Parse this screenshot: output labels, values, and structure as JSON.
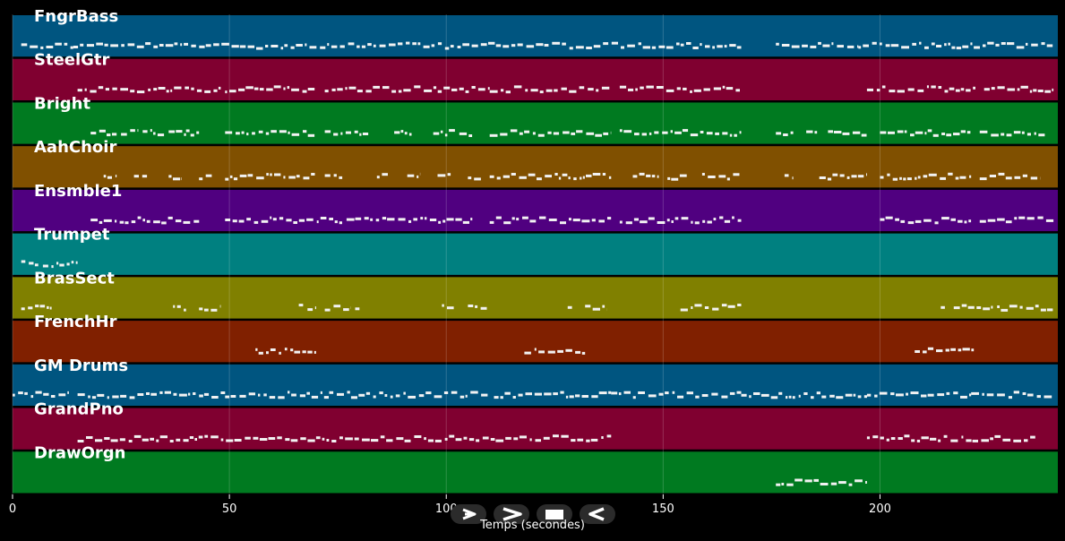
{
  "chart_data": {
    "type": "piano-roll",
    "title": "",
    "xlabel": "Temps (secondes)",
    "ylabel": "",
    "xlim": [
      0,
      241
    ],
    "x_ticks": [
      0,
      50,
      100,
      150,
      200
    ],
    "grid": true,
    "tracks": [
      {
        "name": "FngrBass",
        "color": "#005580",
        "segments": [
          [
            2,
            14
          ],
          [
            14,
            168
          ],
          [
            176,
            195
          ],
          [
            195,
            240
          ]
        ]
      },
      {
        "name": "SteelGtr",
        "color": "#800030",
        "segments": [
          [
            15,
            48
          ],
          [
            49,
            70
          ],
          [
            72,
            110
          ],
          [
            110,
            138
          ],
          [
            140,
            168
          ],
          [
            197,
            222
          ],
          [
            224,
            240
          ]
        ]
      },
      {
        "name": "Bright",
        "color": "#007a20",
        "segments": [
          [
            18,
            24
          ],
          [
            25,
            29
          ],
          [
            30,
            35
          ],
          [
            36,
            40
          ],
          [
            40,
            43
          ],
          [
            49,
            70
          ],
          [
            72,
            82
          ],
          [
            88,
            92
          ],
          [
            97,
            102
          ],
          [
            103,
            106
          ],
          [
            110,
            138
          ],
          [
            140,
            168
          ],
          [
            176,
            180
          ],
          [
            183,
            186
          ],
          [
            188,
            197
          ],
          [
            200,
            221
          ],
          [
            223,
            238
          ]
        ]
      },
      {
        "name": "AahChoir",
        "color": "#805000",
        "segments": [
          [
            21,
            24
          ],
          [
            28,
            31
          ],
          [
            36,
            39
          ],
          [
            43,
            46
          ],
          [
            49,
            70
          ],
          [
            72,
            76
          ],
          [
            84,
            87
          ],
          [
            91,
            94
          ],
          [
            98,
            101
          ],
          [
            105,
            108
          ],
          [
            110,
            138
          ],
          [
            143,
            149
          ],
          [
            151,
            156
          ],
          [
            159,
            168
          ],
          [
            178,
            180
          ],
          [
            186,
            197
          ],
          [
            200,
            221
          ],
          [
            223,
            237
          ]
        ]
      },
      {
        "name": "Ensmble1",
        "color": "#500080",
        "segments": [
          [
            18,
            43
          ],
          [
            49,
            76
          ],
          [
            77,
            79
          ],
          [
            79,
            106
          ],
          [
            110,
            138
          ],
          [
            140,
            168
          ],
          [
            200,
            221
          ],
          [
            223,
            240
          ]
        ]
      },
      {
        "name": "Trumpet",
        "color": "#008080",
        "segments": [
          [
            2,
            6
          ],
          [
            7,
            15
          ]
        ]
      },
      {
        "name": "BrasSect",
        "color": "#808000",
        "segments": [
          [
            2,
            9
          ],
          [
            37,
            40
          ],
          [
            43,
            48
          ],
          [
            66,
            67
          ],
          [
            68,
            70
          ],
          [
            72,
            78
          ],
          [
            79,
            80
          ],
          [
            99,
            102
          ],
          [
            105,
            110
          ],
          [
            128,
            129
          ],
          [
            132,
            137
          ],
          [
            154,
            168
          ],
          [
            214,
            215
          ],
          [
            217,
            226
          ],
          [
            227,
            240
          ]
        ]
      },
      {
        "name": "FrenchHr",
        "color": "#802000",
        "segments": [
          [
            56,
            70
          ],
          [
            118,
            132
          ],
          [
            208,
            222
          ]
        ]
      },
      {
        "name": "GM Drums",
        "color": "#005580",
        "segments": [
          [
            0,
            13
          ],
          [
            15,
            49
          ],
          [
            49,
            73
          ],
          [
            73,
            110
          ],
          [
            111,
            138
          ],
          [
            138,
            168
          ],
          [
            168,
            197
          ],
          [
            197,
            221
          ],
          [
            221,
            240
          ]
        ]
      },
      {
        "name": "GrandPno",
        "color": "#800030",
        "segments": [
          [
            15,
            138
          ],
          [
            197,
            236
          ]
        ]
      },
      {
        "name": "DrawOrgn",
        "color": "#007a20",
        "segments": [
          [
            176,
            197
          ]
        ]
      }
    ]
  },
  "controls": {
    "play": "play-icon",
    "fast_forward": "fast-forward-icon",
    "stop": "stop-icon",
    "rewind": "rewind-icon"
  }
}
